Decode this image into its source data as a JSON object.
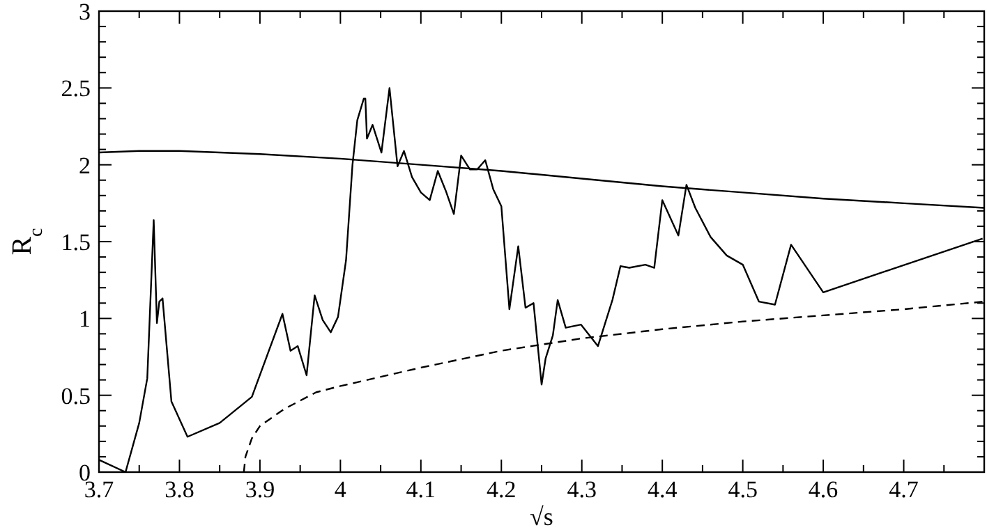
{
  "chart_data": {
    "type": "line",
    "xlabel": "√s",
    "ylabel": "R$_{c}$",
    "xlim": [
      3.7,
      4.8
    ],
    "ylim": [
      0,
      3
    ],
    "xticks": [
      3.7,
      {
        "value": 3.75,
        "label": null
      },
      3.8,
      {
        "value": 3.85,
        "label": null
      },
      3.9,
      {
        "value": 3.95,
        "label": null
      },
      4,
      {
        "value": 4.05,
        "label": null
      },
      4.1,
      {
        "value": 4.15,
        "label": null
      },
      4.2,
      {
        "value": 4.25,
        "label": null
      },
      4.3,
      {
        "value": 4.35,
        "label": null
      },
      4.4,
      {
        "value": 4.45,
        "label": null
      },
      4.5,
      {
        "value": 4.55,
        "label": null
      },
      4.6,
      {
        "value": 4.65,
        "label": null
      },
      4.7,
      {
        "value": 4.75,
        "label": null
      }
    ],
    "yticks": [
      0,
      {
        "value": 0.1,
        "label": null
      },
      {
        "value": 0.2,
        "label": null
      },
      {
        "value": 0.3,
        "label": null
      },
      {
        "value": 0.4,
        "label": null
      },
      0.5,
      {
        "value": 0.6,
        "label": null
      },
      {
        "value": 0.7,
        "label": null
      },
      {
        "value": 0.8,
        "label": null
      },
      {
        "value": 0.9,
        "label": null
      },
      1,
      {
        "value": 1.1,
        "label": null
      },
      {
        "value": 1.2,
        "label": null
      },
      {
        "value": 1.3,
        "label": null
      },
      {
        "value": 1.4,
        "label": null
      },
      1.5,
      {
        "value": 1.6,
        "label": null
      },
      {
        "value": 1.7,
        "label": null
      },
      {
        "value": 1.8,
        "label": null
      },
      {
        "value": 1.9,
        "label": null
      },
      2,
      {
        "value": 2.1,
        "label": null
      },
      {
        "value": 2.2,
        "label": null
      },
      {
        "value": 2.3,
        "label": null
      },
      {
        "value": 2.4,
        "label": null
      },
      2.5,
      {
        "value": 2.6,
        "label": null
      },
      {
        "value": 2.7,
        "label": null
      },
      {
        "value": 2.8,
        "label": null
      },
      {
        "value": 2.9,
        "label": null
      },
      3
    ],
    "grid": false,
    "marker": "none",
    "series": [
      {
        "color": "#000000",
        "line_style": "solid",
        "x": [
          3.7,
          3.733,
          3.75,
          3.76,
          3.768,
          3.772,
          3.775,
          3.779,
          3.79,
          3.81,
          3.85,
          3.89,
          3.928,
          3.938,
          3.947,
          3.958,
          3.968,
          3.978,
          3.988,
          3.997,
          4.007,
          4.015,
          4.021,
          4.029,
          4.031,
          4.033,
          4.04,
          4.051,
          4.061,
          4.071,
          4.079,
          4.089,
          4.1,
          4.111,
          4.121,
          4.131,
          4.141,
          4.15,
          4.161,
          4.17,
          4.18,
          4.19,
          4.2,
          4.21,
          4.221,
          4.23,
          4.24,
          4.25,
          4.255,
          4.264,
          4.27,
          4.28,
          4.299,
          4.32,
          4.338,
          4.348,
          4.359,
          4.379,
          4.39,
          4.4,
          4.42,
          4.43,
          4.441,
          4.46,
          4.48,
          4.5,
          4.52,
          4.54,
          4.56,
          4.6,
          4.798
        ],
        "values": [
          0.08,
          0,
          0.32,
          0.61,
          1.64,
          0.97,
          1.11,
          1.13,
          0.46,
          0.23,
          0.32,
          0.49,
          1.03,
          0.79,
          0.82,
          0.63,
          1.15,
          0.99,
          0.91,
          1.01,
          1.38,
          2.0,
          2.29,
          2.43,
          2.43,
          2.17,
          2.26,
          2.08,
          2.5,
          1.99,
          2.09,
          1.92,
          1.82,
          1.77,
          1.96,
          1.83,
          1.68,
          2.06,
          1.97,
          1.97,
          2.03,
          1.84,
          1.73,
          1.06,
          1.47,
          1.07,
          1.1,
          0.57,
          0.74,
          0.89,
          1.12,
          0.94,
          0.96,
          0.82,
          1.12,
          1.34,
          1.33,
          1.35,
          1.33,
          1.77,
          1.54,
          1.87,
          1.72,
          1.53,
          1.41,
          1.35,
          1.11,
          1.09,
          1.48,
          1.17,
          1.52
        ]
      },
      {
        "color": "#000000",
        "line_style": "solid",
        "x": [
          3.7,
          3.75,
          3.8,
          3.9,
          4.0,
          4.1,
          4.2,
          4.3,
          4.4,
          4.5,
          4.6,
          4.7,
          4.8
        ],
        "values": [
          2.08,
          2.09,
          2.09,
          2.07,
          2.04,
          2.0,
          1.96,
          1.91,
          1.86,
          1.82,
          1.78,
          1.75,
          1.72
        ]
      },
      {
        "color": "#000000",
        "line_style": "dashed",
        "x": [
          3.88,
          3.882,
          3.89,
          3.9,
          3.93,
          3.97,
          4.0,
          4.1,
          4.2,
          4.3,
          4.4,
          4.5,
          4.6,
          4.7,
          4.8
        ],
        "values": [
          0,
          0.1,
          0.22,
          0.3,
          0.41,
          0.52,
          0.56,
          0.68,
          0.79,
          0.87,
          0.93,
          0.98,
          1.02,
          1.06,
          1.11
        ]
      }
    ]
  }
}
